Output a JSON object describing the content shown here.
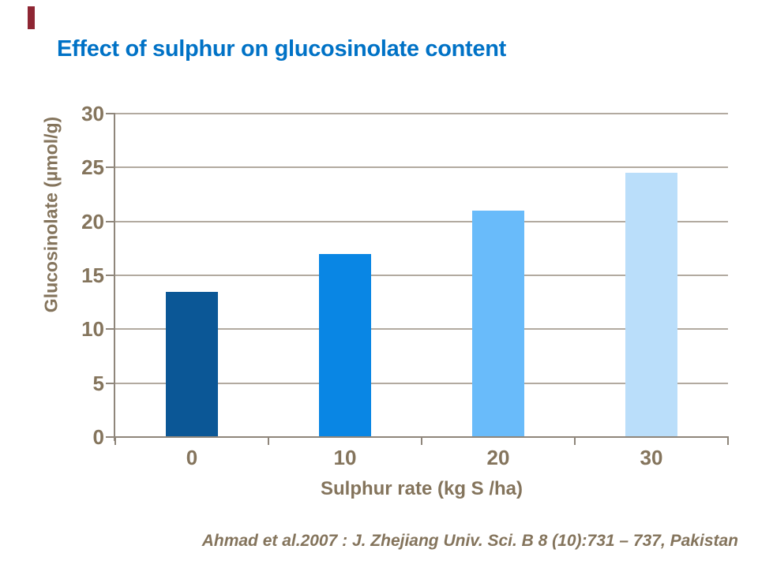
{
  "slide": {
    "title": "Effect of sulphur on glucosinolate content",
    "title_color": "#0072C6",
    "accent_bar_color": "#8E2633",
    "citation": "Ahmad et al.2007 : J. Zhejiang Univ. Sci. B 8 (10):731 – 737, Pakistan",
    "citation_color": "#84745C"
  },
  "chart_data": {
    "type": "bar",
    "title": "Effect of sulphur on glucosinolate content",
    "categories": [
      "0",
      "10",
      "20",
      "30"
    ],
    "values": [
      13.5,
      17,
      21,
      24.5
    ],
    "bar_colors": [
      "#0B5796",
      "#0986E4",
      "#69BBFA",
      "#BADEFA"
    ],
    "xlabel": "Sulphur rate (kg S /ha)",
    "ylabel": "Glucosinolate (µmol/g)",
    "ylim": [
      0,
      30
    ],
    "yticks": [
      0,
      5,
      10,
      15,
      20,
      25,
      30
    ],
    "grid": "horizontal",
    "legend": "none",
    "axis_text_color": "#84745C",
    "gridline_color": "#B2AAA0",
    "axis_line_color": "#8F867B"
  }
}
